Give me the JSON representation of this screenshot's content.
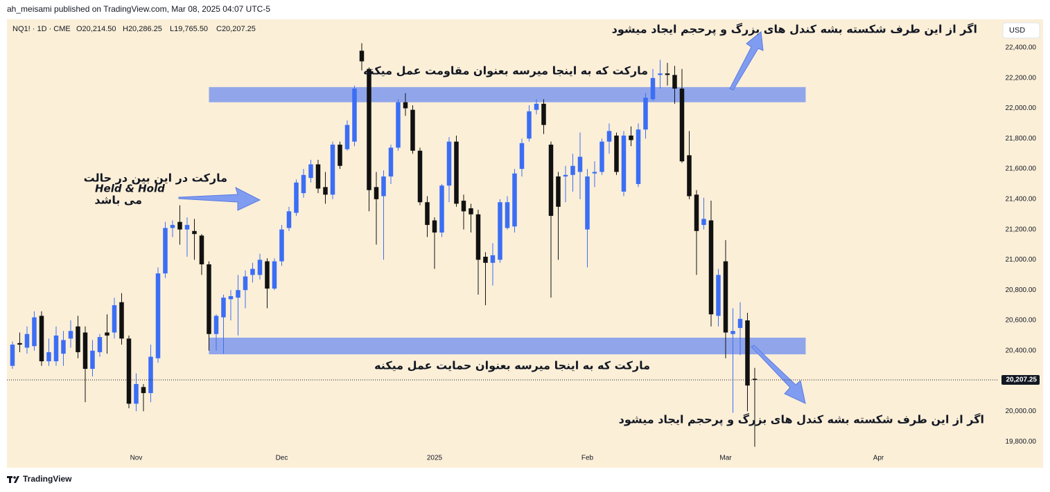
{
  "header": {
    "published": "ah_meisami published on TradingView.com, Mar 08, 2025 04:07 UTC-5"
  },
  "footer": {
    "brand": "TradingView"
  },
  "chart_data": {
    "type": "candlestick",
    "symbol": "NQ1! · 1D · CME",
    "ohlc_labels": [
      "O20,214.50",
      "H20,286.25",
      "L19,765.50",
      "C20,207.25"
    ],
    "currency": "USD",
    "up_color": "#3b6ef5",
    "down_color": "#111111",
    "grid": false,
    "categories": [
      null,
      null,
      null,
      null,
      null,
      null,
      null,
      null,
      null,
      null,
      null,
      null,
      null,
      null,
      null,
      null,
      null,
      null,
      null,
      null,
      null,
      null,
      null,
      null,
      null,
      null,
      null,
      null,
      null,
      null,
      null,
      null,
      null,
      null,
      null,
      null,
      null,
      null,
      null,
      null,
      null,
      null,
      null,
      null,
      null,
      null,
      null,
      null,
      null,
      null,
      null,
      null,
      null,
      null,
      null,
      null,
      null,
      null,
      null,
      null,
      null,
      null,
      null,
      null,
      null,
      null,
      null,
      null,
      null,
      null,
      null,
      null,
      null,
      null,
      null,
      null,
      null,
      null,
      null,
      null,
      null,
      null,
      null,
      null,
      null,
      null,
      null,
      null,
      null,
      null,
      null,
      null,
      null,
      null,
      null,
      null,
      null,
      null,
      null,
      null,
      null,
      null,
      null
    ],
    "open": [
      20300,
      20450,
      20420,
      20430,
      20630,
      20330,
      20330,
      20380,
      20480,
      20560,
      20520,
      20280,
      20390,
      20520,
      20520,
      20720,
      20480,
      20050,
      20160,
      20120,
      20350,
      20910,
      21210,
      21250,
      21200,
      21190,
      21160,
      20970,
      20510,
      20620,
      20740,
      20750,
      20800,
      20900,
      20900,
      20990,
      20810,
      20990,
      21210,
      21310,
      21440,
      21540,
      21630,
      21480,
      21430,
      21760,
      21730,
      21780,
      22380,
      22260,
      21480,
      21420,
      21550,
      21740,
      22040,
      21990,
      21720,
      21380,
      21260,
      21180,
      21490,
      21780,
      21390,
      21340,
      21300,
      21020,
      20980,
      21000,
      21210,
      21220,
      21600,
      21800,
      21990,
      22030,
      21760,
      21550,
      21550,
      21560,
      21580,
      21200,
      21570,
      21580,
      21780,
      21820,
      21450,
      21820,
      21500,
      21860,
      22060,
      22220,
      22230,
      22220,
      22130,
      21690,
      21430,
      21230,
      21260,
      20630,
      20990,
      20510,
      20550,
      20600,
      20214.5
    ],
    "high": [
      20460,
      20520,
      20560,
      20660,
      20660,
      20480,
      20560,
      20530,
      20600,
      20630,
      20560,
      20470,
      20510,
      20640,
      20750,
      20780,
      20500,
      20250,
      20180,
      20440,
      20950,
      21250,
      21260,
      21360,
      21280,
      21270,
      21170,
      20990,
      20640,
      20770,
      20800,
      20900,
      20930,
      20980,
      21040,
      21010,
      21010,
      21230,
      21350,
      21530,
      21600,
      21660,
      21660,
      21580,
      21780,
      21780,
      21920,
      22150,
      22430,
      22270,
      21580,
      21590,
      21760,
      22060,
      22100,
      22020,
      21740,
      21420,
      21280,
      21500,
      21810,
      21820,
      21430,
      21370,
      21330,
      21050,
      21110,
      21400,
      21420,
      21600,
      21800,
      22020,
      22060,
      22060,
      21780,
      21580,
      21620,
      21700,
      21840,
      21600,
      21650,
      21800,
      21900,
      21840,
      21850,
      21880,
      21900,
      22100,
      22260,
      22320,
      22300,
      22280,
      22260,
      21850,
      21460,
      21410,
      21390,
      20940,
      21130,
      20680,
      20720,
      20650,
      20286.25
    ],
    "low": [
      20280,
      20390,
      20380,
      20400,
      20300,
      20300,
      20300,
      20300,
      20420,
      20350,
      20060,
      20230,
      20360,
      20380,
      20480,
      20440,
      20020,
      20000,
      20000,
      20060,
      20320,
      20880,
      21150,
      21100,
      21020,
      21000,
      20900,
      20400,
      20400,
      20380,
      20600,
      20500,
      20680,
      20850,
      20870,
      20680,
      20800,
      20960,
      21190,
      21290,
      21410,
      21510,
      21440,
      21370,
      21400,
      21600,
      21720,
      21750,
      22250,
      21320,
      21100,
      21000,
      21500,
      21720,
      21950,
      21700,
      21360,
      21150,
      20940,
      21150,
      21380,
      21350,
      21200,
      21180,
      20770,
      20700,
      20830,
      20980,
      21200,
      21180,
      21550,
      21780,
      21960,
      21830,
      20750,
      21000,
      21380,
      21450,
      21400,
      20950,
      21480,
      21560,
      21700,
      21560,
      21420,
      21750,
      21480,
      21800,
      22050,
      22130,
      22150,
      22030,
      21640,
      21400,
      20900,
      21200,
      20560,
      20560,
      20350,
      19990,
      20370,
      20000,
      19765.5
    ],
    "close": [
      20440,
      20440,
      20510,
      20620,
      20330,
      20390,
      20500,
      20470,
      20530,
      20390,
      20280,
      20400,
      20490,
      20500,
      20700,
      20480,
      20050,
      20180,
      20120,
      20360,
      20910,
      21210,
      21230,
      21200,
      21230,
      21170,
      20970,
      20510,
      20630,
      20750,
      20760,
      20800,
      20890,
      20940,
      21000,
      20810,
      20990,
      21200,
      21320,
      21510,
      21560,
      21630,
      21470,
      21430,
      21760,
      21620,
      21890,
      22130,
      22310,
      21460,
      21400,
      21550,
      21740,
      22040,
      22000,
      21720,
      21380,
      21230,
      21180,
      21490,
      21780,
      21370,
      21320,
      21300,
      21000,
      20980,
      21030,
      21380,
      21380,
      21570,
      21770,
      21980,
      22030,
      21890,
      21290,
      21350,
      21560,
      21620,
      21680,
      21550,
      21580,
      21780,
      21850,
      21580,
      21820,
      21790,
      21860,
      22070,
      22200,
      22230,
      22220,
      22130,
      21650,
      21420,
      21190,
      21270,
      20640,
      20900,
      20520,
      20530,
      20610,
      20170,
      20207.25
    ],
    "xlim": [
      -0.76,
      135.43
    ],
    "xticks": [
      {
        "value": 17,
        "label": "Nov"
      },
      {
        "value": 37,
        "label": "Dec"
      },
      {
        "value": 58,
        "label": "2025"
      },
      {
        "value": 79,
        "label": "Feb"
      },
      {
        "value": 98,
        "label": "Mar"
      },
      {
        "value": 119,
        "label": "Apr"
      }
    ],
    "ylim": [
      19627,
      22587
    ],
    "yticks": [
      {
        "value": 19800,
        "label": "19,800.00"
      },
      {
        "value": 20000,
        "label": "20,000.00"
      },
      {
        "value": 20200,
        "label": "20,200.00"
      },
      {
        "value": 20400,
        "label": "20,400.00"
      },
      {
        "value": 20600,
        "label": "20,600.00"
      },
      {
        "value": 20800,
        "label": "20,800.00"
      },
      {
        "value": 21000,
        "label": "21,000.00"
      },
      {
        "value": 21200,
        "label": "21,200.00"
      },
      {
        "value": 21400,
        "label": "21,400.00"
      },
      {
        "value": 21600,
        "label": "21,600.00"
      },
      {
        "value": 21800,
        "label": "21,800.00"
      },
      {
        "value": 22000,
        "label": "22,000.00"
      },
      {
        "value": 22200,
        "label": "22,200.00"
      },
      {
        "value": 22400,
        "label": "22,400.00"
      }
    ],
    "last_price": {
      "value": 20207.25,
      "label": "20,207.25"
    },
    "zone_color": "#6d8ef0",
    "zones": [
      {
        "top": 22140,
        "bottom": 22040,
        "start": 27,
        "end": 109
      },
      {
        "top": 20486,
        "bottom": 20376,
        "start": 27,
        "end": 109
      }
    ],
    "annotations": {
      "breakout_top": "اگر از این طرف شکسته بشه کندل های بزرگ و پرحجم  ایجاد میشود",
      "resistance": "مارکت که به اینجا میرسه بعنوان مقاومت عمل میکنه",
      "held_line1": "مارکت در این بین در حالت",
      "held_line2": "Held & Hold",
      "held_line3": "می باشد",
      "support": "مارکت که به اینجا میرسه بعنوان حمایت عمل میکنه",
      "breakout_bottom": "اگر از این طرف شکسته بشه کندل های بزرگ و پرحجم  ایجاد میشود"
    }
  }
}
